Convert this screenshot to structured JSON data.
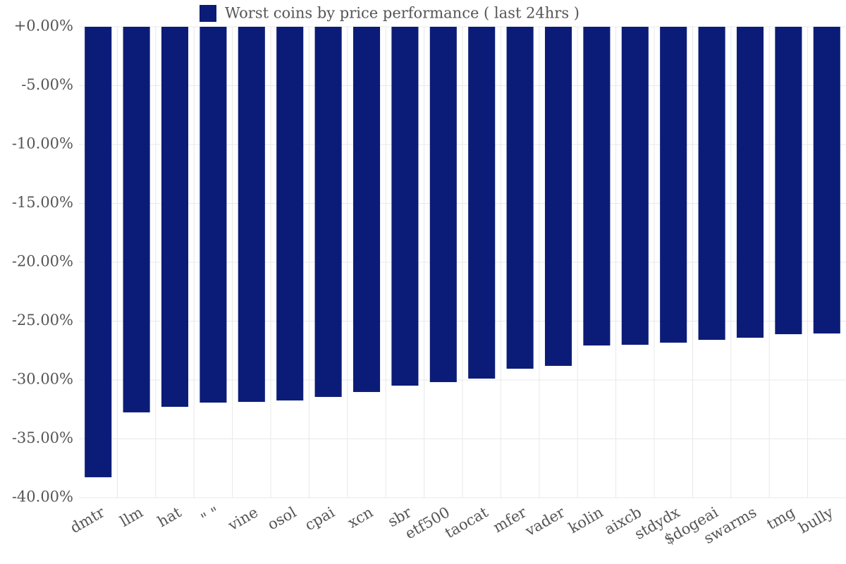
{
  "chart_data": {
    "type": "bar",
    "title": "Worst coins by price performance ( last 24hrs )",
    "categories": [
      "dmtr",
      "llm",
      "hat",
      "\"   \"",
      "vine",
      "osol",
      "cpai",
      "xcn",
      "sbr",
      "etf500",
      "taocat",
      "mfer",
      "vader",
      "kolin",
      "aixcb",
      "stdydx",
      "$dogeai",
      "swarms",
      "tmg",
      "bully"
    ],
    "values": [
      -38.26,
      -32.75,
      -32.28,
      -31.92,
      -31.86,
      -31.74,
      -31.44,
      -31.02,
      -30.48,
      -30.18,
      -29.88,
      -29.04,
      -28.8,
      -27.07,
      -27.01,
      -26.83,
      -26.59,
      -26.41,
      -26.11,
      -26.05
    ],
    "color": "#0b1c78",
    "ylim": [
      -40,
      0
    ],
    "yticks": [
      {
        "value": 0,
        "label": "+0.00%"
      },
      {
        "value": -5,
        "label": "-5.00%"
      },
      {
        "value": -10,
        "label": "-10.00%"
      },
      {
        "value": -15,
        "label": "-15.00%"
      },
      {
        "value": -20,
        "label": "-20.00%"
      },
      {
        "value": -25,
        "label": "-25.00%"
      },
      {
        "value": -30,
        "label": "-30.00%"
      },
      {
        "value": -35,
        "label": "-35.00%"
      },
      {
        "value": -40,
        "label": "-40.00%"
      }
    ],
    "grid": true
  }
}
